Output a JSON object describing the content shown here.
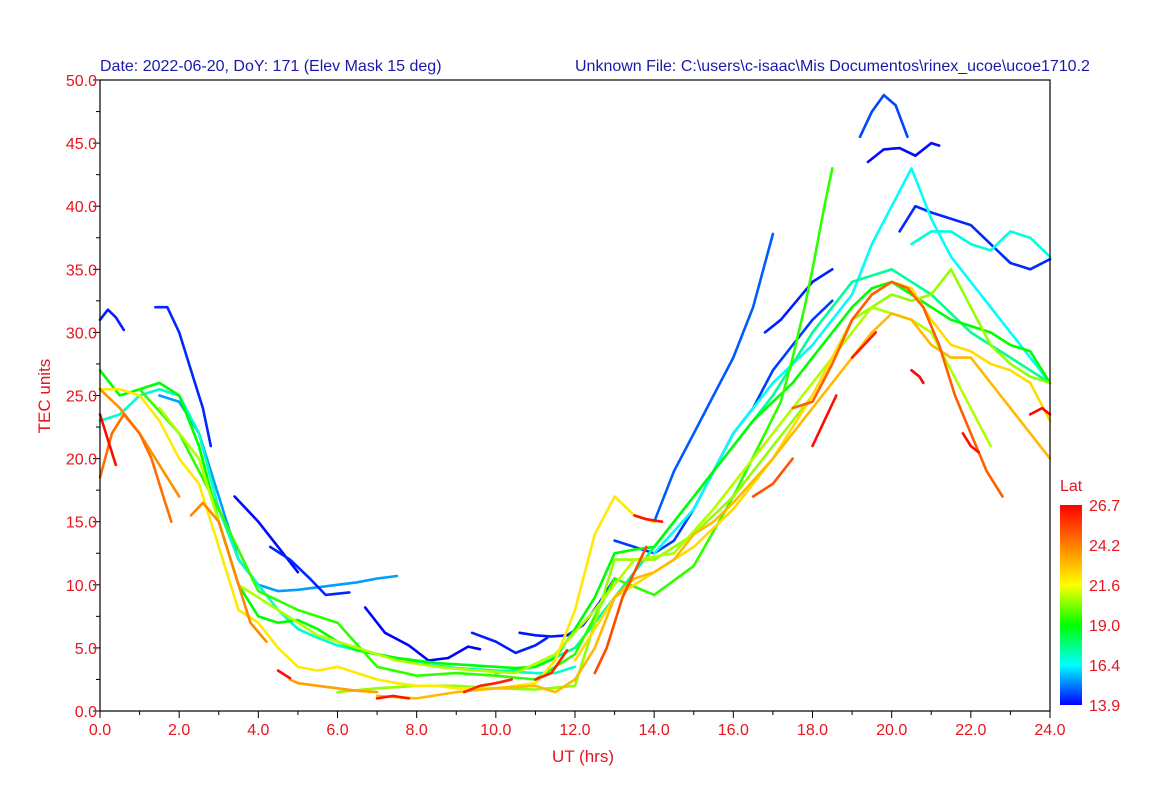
{
  "header": {
    "left": "Date: 2022-06-20, DoY: 171  (Elev Mask 15 deg)",
    "right": "Unknown File: C:\\users\\c-isaac\\Mis Documentos\\rinex_ucoe\\ucoe1710.2"
  },
  "colors": {
    "axis_text": "#e8141e",
    "header_text": "#1a1aa8"
  },
  "chart_data": {
    "type": "line",
    "xlabel": "UT (hrs)",
    "ylabel": "TEC units",
    "xlim": [
      0,
      24
    ],
    "ylim": [
      0,
      50
    ],
    "x_ticks": [
      "0.0",
      "2.0",
      "4.0",
      "6.0",
      "8.0",
      "10.0",
      "12.0",
      "14.0",
      "16.0",
      "18.0",
      "20.0",
      "22.0",
      "24.0"
    ],
    "y_ticks": [
      "0.0",
      "5.0",
      "10.0",
      "15.0",
      "20.0",
      "25.0",
      "30.0",
      "35.0",
      "40.0",
      "45.0",
      "50.0"
    ],
    "grid": false,
    "colorbar": {
      "title": "Lat",
      "labels": [
        "26.7",
        "24.2",
        "21.6",
        "19.0",
        "16.4",
        "13.9"
      ],
      "min": 13.9,
      "max": 26.7
    },
    "series": [
      {
        "lat": 14.2,
        "x": [
          0,
          0.2,
          0.4,
          0.6
        ],
        "y": [
          31,
          31.8,
          31.2,
          30.2
        ]
      },
      {
        "lat": 14.3,
        "x": [
          1.4,
          1.7,
          2.0,
          2.3,
          2.6,
          2.8
        ],
        "y": [
          32,
          32,
          30,
          27,
          24,
          21
        ]
      },
      {
        "lat": 15.5,
        "x": [
          1.5,
          2.0,
          2.5,
          3.0,
          3.5,
          4.0,
          4.5,
          5.0,
          5.5,
          6.0,
          6.5,
          7.0,
          7.5
        ],
        "y": [
          25,
          24.5,
          22,
          17,
          12,
          10,
          9.5,
          9.6,
          9.8,
          10,
          10.2,
          10.5,
          10.7
        ]
      },
      {
        "lat": 14.0,
        "x": [
          3.4,
          4.0,
          4.5,
          5.0
        ],
        "y": [
          17,
          15,
          13,
          11
        ]
      },
      {
        "lat": 14.3,
        "x": [
          4.3,
          4.8,
          5.3,
          5.7,
          6.3
        ],
        "y": [
          13,
          12,
          10.5,
          9.2,
          9.4
        ]
      },
      {
        "lat": 13.9,
        "x": [
          6.7,
          7.2,
          7.8,
          8.3,
          8.8,
          9.3,
          9.6
        ],
        "y": [
          8.2,
          6.2,
          5.2,
          4.0,
          4.2,
          5.1,
          4.9
        ]
      },
      {
        "lat": 14.2,
        "x": [
          9.4,
          10.0,
          10.5,
          11.0,
          11.3
        ],
        "y": [
          6.2,
          5.5,
          4.6,
          5.2,
          5.8
        ]
      },
      {
        "lat": 14.1,
        "x": [
          10.6,
          11.0,
          11.4,
          11.8,
          12.2,
          12.6,
          13.0
        ],
        "y": [
          6.2,
          6.0,
          5.9,
          6.0,
          6.8,
          8.5,
          10.5
        ]
      },
      {
        "lat": 14.5,
        "x": [
          13.0,
          13.5,
          14.0,
          14.5,
          15.0,
          15.5,
          16.0,
          16.5,
          17.0,
          17.5,
          18.0,
          18.5
        ],
        "y": [
          13.5,
          13.0,
          12.5,
          13.5,
          16,
          19,
          22,
          24,
          27,
          29,
          31,
          32.5
        ]
      },
      {
        "lat": 14.8,
        "x": [
          14.0,
          14.5,
          15.0,
          15.5,
          16.0,
          16.5,
          17.0
        ],
        "y": [
          15,
          19,
          22,
          25,
          28,
          32,
          37.8
        ]
      },
      {
        "lat": 14.2,
        "x": [
          16.8,
          17.2,
          17.6,
          18.0,
          18.5
        ],
        "y": [
          30,
          31,
          32.5,
          34,
          35
        ]
      },
      {
        "lat": 14.6,
        "x": [
          19.2,
          19.5,
          19.8,
          20.1,
          20.4
        ],
        "y": [
          45.5,
          47.5,
          48.8,
          48.0,
          45.5
        ]
      },
      {
        "lat": 14.0,
        "x": [
          19.4,
          19.8,
          20.2,
          20.6,
          21.0,
          21.2
        ],
        "y": [
          43.5,
          44.5,
          44.6,
          44.0,
          45.0,
          44.8
        ]
      },
      {
        "lat": 14.3,
        "x": [
          20.2,
          20.6,
          21.0,
          21.5,
          22.0,
          22.5,
          23.0,
          23.5,
          24.0
        ],
        "y": [
          38,
          40,
          39.5,
          39,
          38.5,
          37,
          35.5,
          35,
          35.8
        ]
      },
      {
        "lat": 16.5,
        "x": [
          14.0,
          15.0,
          16.0,
          17.0,
          18.0,
          19.0,
          19.5,
          20.0,
          20.5,
          21.0,
          21.5,
          22.0,
          22.5,
          23.0,
          23.5,
          24.0
        ],
        "y": [
          12.5,
          16,
          22,
          26,
          29,
          33,
          37,
          40,
          43,
          39,
          36,
          34,
          32,
          30,
          28,
          26
        ]
      },
      {
        "lat": 16.8,
        "x": [
          20.5,
          21.0,
          21.5,
          22.0,
          22.5,
          23.0,
          23.5,
          24.0
        ],
        "y": [
          37,
          38,
          38,
          37,
          36.5,
          38,
          37.5,
          36
        ]
      },
      {
        "lat": 17.0,
        "x": [
          0,
          0.5,
          1.0,
          1.5,
          2.0,
          2.5,
          3.0,
          3.5,
          4.0,
          4.5,
          5.0,
          5.5,
          6.0,
          6.5,
          7.0,
          7.5,
          8.0,
          8.5,
          9.0,
          9.5,
          10.0,
          10.5,
          11.0,
          11.5,
          12.0
        ],
        "y": [
          23,
          23.5,
          25,
          25.5,
          25,
          22,
          16,
          12,
          10,
          8,
          6.5,
          5.8,
          5.2,
          4.8,
          4.5,
          4.2,
          3.9,
          3.6,
          3.4,
          3.3,
          3.2,
          3.1,
          3.0,
          3.0,
          3.5
        ]
      },
      {
        "lat": 17.5,
        "x": [
          10,
          11,
          12,
          13,
          14,
          15,
          16,
          17,
          18,
          19,
          20,
          21,
          22,
          23,
          23.5,
          24
        ],
        "y": [
          3,
          3.5,
          5,
          9,
          13,
          17,
          21,
          25,
          30,
          34,
          35,
          33,
          30,
          28,
          27,
          26
        ]
      },
      {
        "lat": 19.0,
        "x": [
          0,
          0.5,
          1.0,
          1.5,
          2.0,
          2.5,
          3.0,
          3.5,
          4.0,
          4.5,
          5.0,
          5.5,
          6.0,
          6.5,
          7.0,
          7.5,
          8.0,
          8.5,
          9.0,
          9.5,
          10.0,
          10.5,
          11.0,
          11.5,
          12.0,
          12.5,
          13.0,
          13.5,
          14.0,
          14.5,
          15.0,
          15.5,
          16.0,
          16.5,
          17.0,
          17.5,
          18.0,
          18.5,
          19.0,
          19.5,
          20.0,
          20.5,
          21.0,
          21.5,
          22.0,
          22.5,
          23.0,
          23.5,
          24.0
        ],
        "y": [
          27,
          25,
          25.5,
          26,
          25,
          21,
          15,
          10,
          7.5,
          7,
          7.2,
          6.5,
          5.5,
          4.8,
          4.5,
          4.2,
          4.0,
          3.8,
          3.7,
          3.6,
          3.5,
          3.4,
          3.5,
          4.2,
          6.5,
          9,
          12.5,
          12.8,
          13,
          15,
          17,
          19,
          21,
          23,
          24.5,
          26,
          28,
          30,
          32,
          33.5,
          34,
          33,
          32,
          31,
          30.5,
          30,
          29,
          28.5,
          26
        ]
      },
      {
        "lat": 19.5,
        "x": [
          1.0,
          2.0,
          3.0,
          4.0,
          5.0,
          6.0,
          7.0,
          8.0,
          9.0,
          10.0,
          11.0,
          12.0,
          13.0,
          14.0,
          15.0,
          16.0,
          16.8,
          17.2,
          17.5,
          17.8,
          18.0,
          18.3,
          18.5
        ],
        "y": [
          25.5,
          22,
          16,
          9.5,
          8,
          7,
          3.5,
          2.8,
          3.0,
          2.8,
          2.5,
          4.5,
          10.5,
          9.2,
          11.5,
          17,
          22,
          24.5,
          28,
          32,
          35,
          40,
          43
        ]
      },
      {
        "lat": 20.5,
        "x": [
          6.0,
          7.0,
          8.0,
          9.0,
          10.0,
          11.0,
          12.0,
          13.0,
          14.0,
          15.0,
          16.0,
          17.0,
          18.0,
          19.0,
          19.5,
          20.0,
          20.5,
          21.0,
          21.5,
          22.0,
          22.5,
          23.0,
          23.5,
          24.0
        ],
        "y": [
          1.5,
          1.8,
          2.0,
          2.0,
          1.8,
          1.7,
          2.0,
          12,
          12,
          14,
          17,
          21,
          25,
          31,
          32,
          33,
          32.5,
          33,
          35,
          32,
          29,
          27.5,
          26.5,
          26
        ]
      },
      {
        "lat": 20.8,
        "x": [
          1.5,
          2.5,
          3.5,
          4.5,
          5.5,
          6.5,
          7.5,
          8.5,
          9.5,
          10.5,
          11.5,
          12.5,
          13.5,
          14.5,
          15.5,
          16.5,
          17.5,
          18.5,
          19.5,
          20.5,
          21.0,
          21.5,
          22.0,
          22.5
        ],
        "y": [
          24,
          20,
          10,
          8,
          6,
          5,
          4,
          3.5,
          3.2,
          3.0,
          4.5,
          8,
          12,
          12.5,
          16,
          20,
          24,
          28,
          32,
          31,
          30,
          27,
          24,
          21
        ]
      },
      {
        "lat": 22.0,
        "x": [
          0,
          0.5,
          1.0,
          1.5,
          2.0,
          2.5,
          3.0,
          3.5,
          4.0,
          4.5,
          5.0,
          5.5,
          6.0,
          6.5,
          7.0,
          7.5,
          8.0,
          8.5,
          9.0,
          9.5,
          10.0,
          10.5,
          11.0,
          11.5,
          12.0,
          12.5,
          13.0,
          13.5,
          14.0
        ],
        "y": [
          25.5,
          25.5,
          25,
          23,
          20,
          18,
          13,
          8,
          7,
          5,
          3.5,
          3.2,
          3.5,
          3.0,
          2.5,
          2.2,
          2.0,
          2.0,
          1.8,
          1.8,
          1.8,
          2.0,
          2.2,
          4.0,
          8,
          14,
          17,
          15.5,
          15
        ]
      },
      {
        "lat": 22.3,
        "x": [
          12,
          13,
          14,
          15,
          16,
          17,
          18,
          19,
          19.5,
          20,
          20.5,
          21,
          21.5,
          22,
          22.5,
          23,
          23.5,
          24
        ],
        "y": [
          4,
          9,
          11,
          13,
          16,
          20,
          25,
          31,
          33,
          34,
          33.5,
          31,
          29,
          28.5,
          27.5,
          27,
          26,
          23
        ]
      },
      {
        "lat": 23.0,
        "x": [
          7.0,
          8.0,
          9.0,
          10.0,
          11.0,
          11.5,
          12.0,
          12.5,
          13.0,
          13.5,
          14.0,
          14.5,
          15.0,
          15.5,
          16.0,
          17.0,
          18.0,
          19.0,
          19.5,
          20.0,
          20.5,
          21.0,
          21.5,
          22.0,
          23.0,
          24.0
        ],
        "y": [
          1.2,
          1.0,
          1.5,
          1.8,
          2.0,
          1.5,
          2.5,
          5,
          9,
          10.5,
          11,
          12,
          14,
          15,
          16.5,
          20,
          24,
          28,
          30,
          31.5,
          31,
          29,
          28,
          28,
          24,
          20
        ]
      },
      {
        "lat": 23.8,
        "x": [
          0,
          0.5,
          1.0,
          1.5,
          2.0
        ],
        "y": [
          25.5,
          24,
          22,
          19.5,
          17
        ]
      },
      {
        "lat": 24.5,
        "x": [
          0,
          0.3,
          0.6,
          1.0,
          1.3,
          1.6,
          1.8
        ],
        "y": [
          18.5,
          22,
          23.5,
          22,
          20,
          17,
          15
        ]
      },
      {
        "lat": 24.0,
        "x": [
          2.3,
          2.6,
          3.0,
          3.4,
          3.8,
          4.2
        ],
        "y": [
          15.5,
          16.5,
          15,
          11,
          7,
          5.5
        ]
      },
      {
        "lat": 23.5,
        "x": [
          4.8,
          5.0,
          5.5,
          6.0,
          6.5,
          7.0
        ],
        "y": [
          2.5,
          2.2,
          2.0,
          1.8,
          1.6,
          1.5
        ]
      },
      {
        "lat": 24.8,
        "x": [
          17.5,
          18.0,
          18.5,
          19.0,
          19.5,
          20.0,
          20.4,
          20.8,
          21.2,
          21.6,
          22.0,
          22.4,
          22.8
        ],
        "y": [
          24,
          24.5,
          27.5,
          31,
          33,
          34,
          33.5,
          32,
          29,
          25,
          22,
          19,
          17
        ]
      },
      {
        "lat": 25.0,
        "x": [
          16.5,
          17.0,
          17.5
        ],
        "y": [
          17,
          18,
          20
        ]
      },
      {
        "lat": 25.2,
        "x": [
          12.5,
          12.8,
          13.2,
          13.8
        ],
        "y": [
          3,
          5,
          9,
          13
        ]
      },
      {
        "lat": 26.5,
        "x": [
          0,
          0.2,
          0.4
        ],
        "y": [
          23.5,
          21.5,
          19.5
        ]
      },
      {
        "lat": 26.0,
        "x": [
          11.0,
          11.4,
          11.8
        ],
        "y": [
          2.5,
          3.0,
          4.8
        ]
      },
      {
        "lat": 26.3,
        "x": [
          7.0,
          7.4,
          7.8
        ],
        "y": [
          1.0,
          1.2,
          1.0
        ]
      },
      {
        "lat": 26.0,
        "x": [
          9.2,
          9.6,
          10.0,
          10.4
        ],
        "y": [
          1.5,
          2.0,
          2.2,
          2.5
        ]
      },
      {
        "lat": 26.2,
        "x": [
          19.0,
          19.3,
          19.6
        ],
        "y": [
          28,
          29,
          30
        ]
      },
      {
        "lat": 26.6,
        "x": [
          20.5,
          20.7,
          20.8
        ],
        "y": [
          27,
          26.5,
          26
        ]
      },
      {
        "lat": 26.4,
        "x": [
          21.8,
          22.0,
          22.2
        ],
        "y": [
          22,
          21,
          20.5
        ]
      },
      {
        "lat": 26.6,
        "x": [
          23.5,
          23.8,
          24.0
        ],
        "y": [
          23.5,
          24,
          23.5
        ]
      },
      {
        "lat": 26.3,
        "x": [
          13.5,
          13.8,
          14.2
        ],
        "y": [
          15.5,
          15.2,
          15.0
        ]
      },
      {
        "lat": 26.5,
        "x": [
          18.0,
          18.3,
          18.6
        ],
        "y": [
          21,
          23,
          25
        ]
      },
      {
        "lat": 26.5,
        "x": [
          4.5,
          4.8
        ],
        "y": [
          3.2,
          2.6
        ]
      }
    ]
  }
}
